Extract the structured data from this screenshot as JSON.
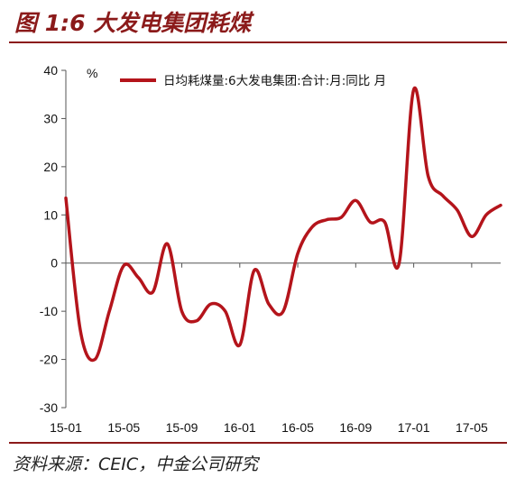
{
  "header": {
    "title": "图 1:6 大发电集团耗煤"
  },
  "footer": {
    "source": "资料来源：CEIC，中金公司研究"
  },
  "chart_data": {
    "type": "line",
    "title": "",
    "ylabel": "%",
    "xlabel": "",
    "ylim": [
      -30,
      40
    ],
    "yticks": [
      40,
      30,
      20,
      10,
      0,
      -10,
      -20,
      -30
    ],
    "x_start": "15-01",
    "x_end": "17-07",
    "xtick_labels": [
      "15-01",
      "15-05",
      "15-09",
      "16-01",
      "16-05",
      "16-09",
      "17-01",
      "17-05"
    ],
    "legend": {
      "position": "top-right",
      "label": "日均耗煤量:6大发电集团:合计:月:同比  月"
    },
    "series": [
      {
        "name": "日均耗煤量:6大发电集团:合计:月:同比  月",
        "color": "#b4141b",
        "x": [
          "15-01",
          "15-02",
          "15-03",
          "15-04",
          "15-05",
          "15-06",
          "15-07",
          "15-08",
          "15-09",
          "15-10",
          "15-11",
          "15-12",
          "16-01",
          "16-02",
          "16-03",
          "16-04",
          "16-05",
          "16-06",
          "16-07",
          "16-08",
          "16-09",
          "16-10",
          "16-11",
          "16-12",
          "17-01",
          "17-02",
          "17-03",
          "17-04",
          "17-05",
          "17-06",
          "17-07"
        ],
        "values": [
          13.5,
          -14,
          -20,
          -10,
          -0.5,
          -3,
          -6,
          4,
          -10,
          -12,
          -8.5,
          -10,
          -17,
          -1.5,
          -8.5,
          -10,
          2,
          7.5,
          9,
          9.5,
          13,
          8.5,
          8.5,
          0,
          36,
          18,
          14,
          11,
          5.5,
          10,
          12
        ]
      }
    ]
  }
}
